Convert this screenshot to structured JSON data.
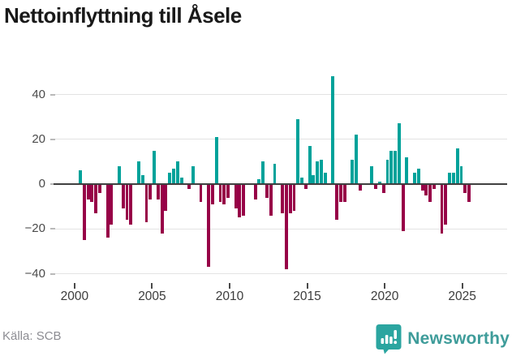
{
  "title": "Nettoinflyttning till Åsele",
  "source_label": "Källa: SCB",
  "branding": {
    "name": "Newsworthy",
    "icon": "bar-chart-speech-bubble-icon"
  },
  "colors": {
    "positive": "#00a29a",
    "negative": "#970147",
    "axis": "#404040",
    "gridline": "#e3e3e3",
    "brand_teal": "#3e9c9a",
    "title_text": "#191919",
    "tick_text": "#4a4a4a",
    "source_text": "#8c8c92"
  },
  "chart_data": {
    "type": "bar",
    "title": "Nettoinflyttning till Åsele",
    "xlabel": "",
    "ylabel": "",
    "start_quarter": "2000 Q1",
    "frequency": "quarterly",
    "series": [
      {
        "name": "Nettoinflyttning",
        "values": [
          0,
          6,
          -25,
          -7,
          -8,
          -13,
          -4,
          0,
          -24,
          -18,
          0,
          8,
          -11,
          -16,
          -18,
          0,
          10,
          4,
          -17,
          -7,
          15,
          -7,
          -22,
          -12,
          5,
          7,
          10,
          3,
          0,
          -2,
          8,
          0,
          -8,
          0,
          -37,
          -9,
          21,
          -8,
          -9,
          -6,
          0,
          -11,
          -15,
          -14,
          0,
          0,
          -7,
          2,
          10,
          -6,
          -14,
          9,
          0,
          -13,
          -38,
          -13,
          -12,
          29,
          3,
          -2,
          17,
          4,
          10,
          11,
          5,
          0,
          48,
          -16,
          -8,
          -8,
          0,
          11,
          22,
          -3,
          0,
          0,
          8,
          -2,
          1,
          -4,
          11,
          15,
          15,
          27,
          -21,
          12,
          0,
          5,
          7,
          -3,
          -5,
          -8,
          -2,
          0,
          -22,
          -18,
          5,
          5,
          16,
          8,
          -4,
          -8
        ]
      }
    ],
    "y_ticks": [
      40,
      20,
      0,
      -20,
      -40
    ],
    "x_ticks": [
      2000,
      2005,
      2010,
      2015,
      2020,
      2025
    ],
    "ylim": [
      -45,
      50
    ],
    "grid": "horizontal",
    "legend": "none",
    "positive_color": "#00a29a",
    "negative_color": "#970147"
  }
}
